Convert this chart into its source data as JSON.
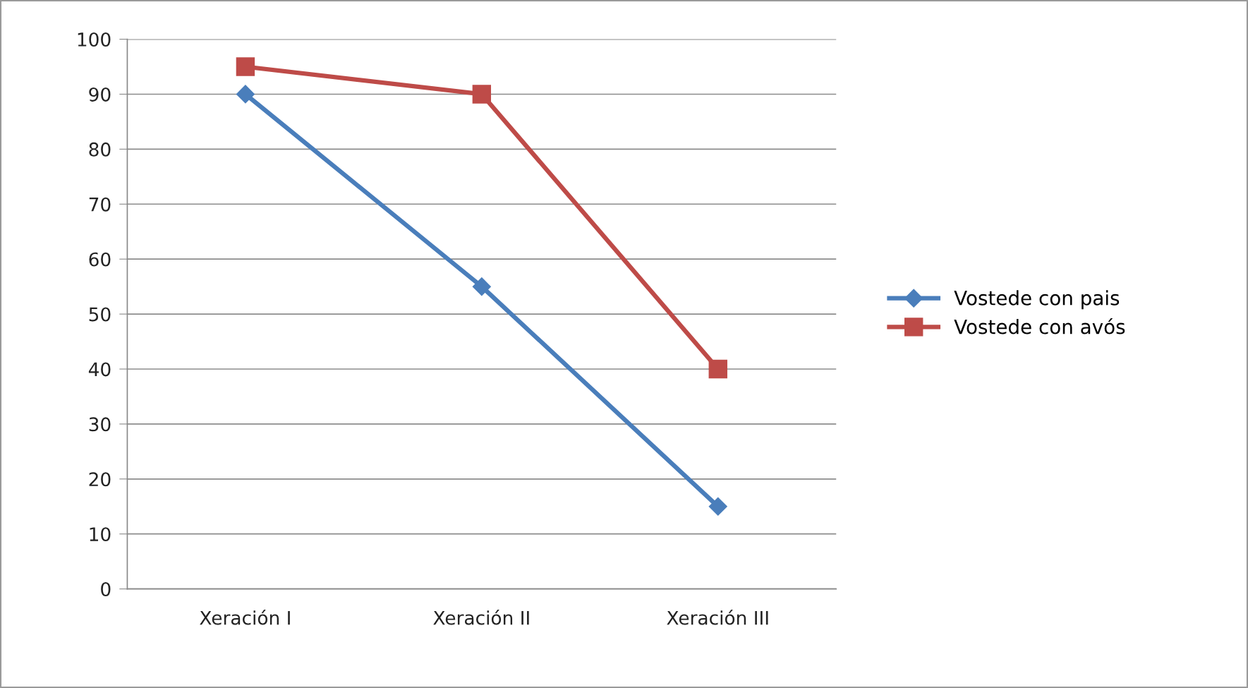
{
  "chart_data": {
    "type": "line",
    "categories": [
      "Xeración I",
      "Xeración II",
      "Xeración III"
    ],
    "series": [
      {
        "name": "Vostede con pais",
        "color": "#4a7ebb",
        "marker": "diamond",
        "values": [
          90,
          55,
          15
        ]
      },
      {
        "name": "Vostede con avós",
        "color": "#be4b48",
        "marker": "square",
        "values": [
          95,
          90,
          40
        ]
      }
    ],
    "ylim": [
      0,
      100
    ],
    "yticks": [
      0,
      10,
      20,
      30,
      40,
      50,
      60,
      70,
      80,
      90,
      100
    ],
    "grid": "y",
    "legend": "right",
    "line_style": "solid"
  }
}
